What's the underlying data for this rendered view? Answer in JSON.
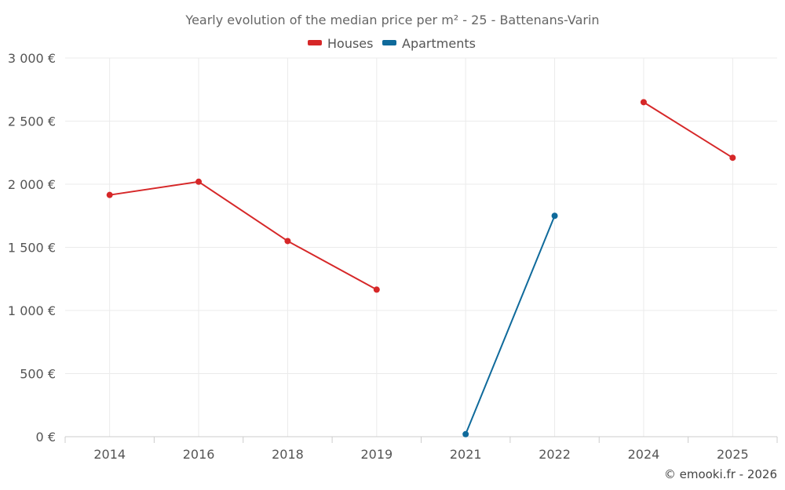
{
  "chart_data": {
    "type": "line",
    "title": "Yearly evolution of the median price per m² - 25 - Battenans-Varin",
    "categories": [
      "2014",
      "2016",
      "2018",
      "2019",
      "2021",
      "2022",
      "2024",
      "2025"
    ],
    "y_tick_labels": [
      "0 €",
      "500 €",
      "1 000 €",
      "1 500 €",
      "2 000 €",
      "2 500 €",
      "3 000 €"
    ],
    "y_ticks": [
      0,
      500,
      1000,
      1500,
      2000,
      2500,
      3000
    ],
    "ylim": [
      0,
      3000
    ],
    "xlabel": "",
    "ylabel": "",
    "grid": true,
    "legend_position": "top-center",
    "series": [
      {
        "name": "Houses",
        "color": "#d62728",
        "values": [
          1915,
          2020,
          1550,
          1165,
          null,
          null,
          2650,
          2210
        ]
      },
      {
        "name": "Apartments",
        "color": "#0f6a9b",
        "values": [
          null,
          null,
          null,
          null,
          20,
          1750,
          null,
          null
        ]
      }
    ],
    "credit": "© emooki.fr - 2026"
  }
}
